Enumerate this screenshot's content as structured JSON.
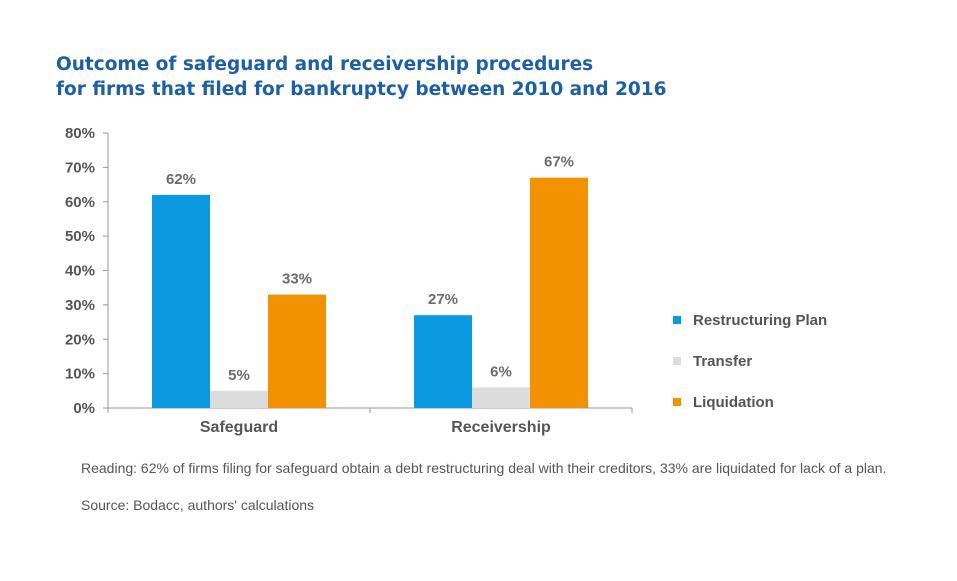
{
  "title": {
    "line1": "Outcome of safeguard and receivership procedures",
    "line2": "for firms that filed for bankruptcy between 2010 and 2016"
  },
  "notes": {
    "reading": "Reading: 62% of firms filing for safeguard obtain a debt restructuring deal with their creditors, 33% are liquidated for lack of a plan.",
    "source": "Source: Bodacc, authors' calculations"
  },
  "colors": {
    "title": "#1b5fa8",
    "restructuring": "#0b9ae0",
    "transfer": "#dcdcdc",
    "liquidation": "#f39200",
    "axis_text": "#555555",
    "label_text": "#6b6b6b"
  },
  "chart_data": {
    "type": "bar",
    "categories": [
      "Safeguard",
      "Receivership"
    ],
    "series": [
      {
        "name": "Restructuring Plan",
        "values": [
          62,
          27
        ],
        "labels": [
          "62%",
          "27%"
        ],
        "color": "#0b9ae0"
      },
      {
        "name": "Transfer",
        "values": [
          5,
          6
        ],
        "labels": [
          "5%",
          "6%"
        ],
        "color": "#dcdcdc"
      },
      {
        "name": "Liquidation",
        "values": [
          33,
          67
        ],
        "labels": [
          "33%",
          "67%"
        ],
        "color": "#f39200"
      }
    ],
    "ylim": [
      0,
      80
    ],
    "yticks": [
      0,
      10,
      20,
      30,
      40,
      50,
      60,
      70,
      80
    ],
    "ytick_labels": [
      "0%",
      "10%",
      "20%",
      "30%",
      "40%",
      "50%",
      "60%",
      "70%",
      "80%"
    ],
    "grid": false,
    "legend": "right"
  }
}
